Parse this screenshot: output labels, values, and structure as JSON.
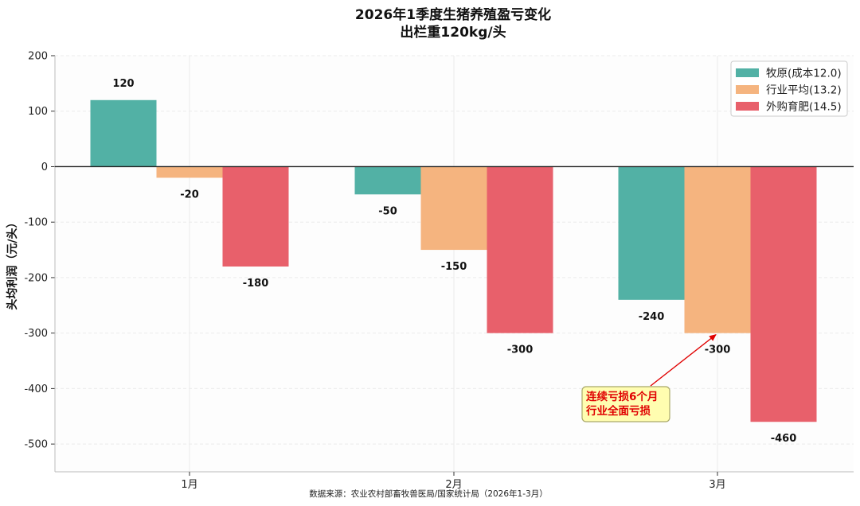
{
  "chart_data": {
    "type": "bar",
    "title": "2026年1季度生猪养殖盈亏变化",
    "subtitle": "出栏重120kg/头",
    "ylabel": "头均利润（元/头）",
    "xlabel": "",
    "categories": [
      "1月",
      "2月",
      "3月"
    ],
    "series": [
      {
        "name": "牧原(成本12.0)",
        "values": [
          120,
          -50,
          -240
        ],
        "color": "#52b1a5"
      },
      {
        "name": "行业平均(13.2)",
        "values": [
          -20,
          -150,
          -300
        ],
        "color": "#f5b47f"
      },
      {
        "name": "外购育肥(14.5)",
        "values": [
          -180,
          -300,
          -460
        ],
        "color": "#e8606b"
      }
    ],
    "ylim": [
      -550,
      200
    ],
    "yticks": [
      200,
      100,
      0,
      -100,
      -200,
      -300,
      -400,
      -500
    ],
    "ytick_labels": [
      "200",
      "100",
      "0",
      "-100",
      "-200",
      "-300",
      "-400",
      "-500"
    ],
    "grid": true,
    "legend": "top-right",
    "annotation": {
      "lines": [
        "连续亏损6个月",
        "行业全面亏损"
      ],
      "target_category": "3月",
      "target_series": "行业平均(13.2)",
      "target_value": -300,
      "arrow_color": "#e00000",
      "box_color": "#fffdb0"
    },
    "source": "数据来源：农业农村部畜牧兽医局/国家统计局（2026年1-3月）"
  }
}
